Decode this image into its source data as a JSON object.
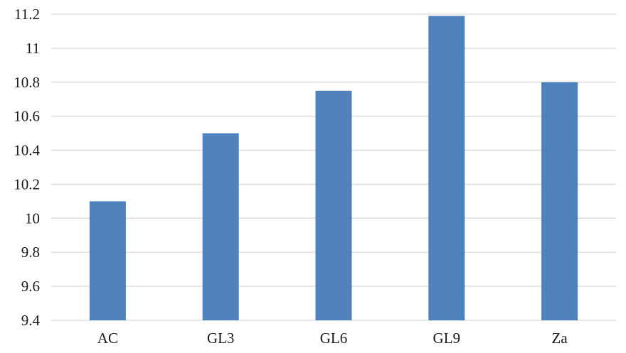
{
  "chart_data": {
    "type": "bar",
    "title": "",
    "xlabel": "",
    "ylabel": "",
    "categories": [
      "AC",
      "GL3",
      "GL6",
      "GL9",
      "Za"
    ],
    "values": [
      10.1,
      10.5,
      10.75,
      11.19,
      10.8
    ],
    "ylim": [
      9.4,
      11.2
    ],
    "yticks": [
      9.4,
      9.6,
      9.8,
      10,
      10.2,
      10.4,
      10.6,
      10.8,
      11,
      11.2
    ],
    "ytick_labels": [
      "9.4",
      "9.6",
      "9.8",
      "10",
      "10.2",
      "10.4",
      "10.6",
      "10.8",
      "11",
      "11.2"
    ],
    "grid": true,
    "legend": "none",
    "bar_color": "#4f81bd",
    "grid_color": "#d9d9d9"
  }
}
